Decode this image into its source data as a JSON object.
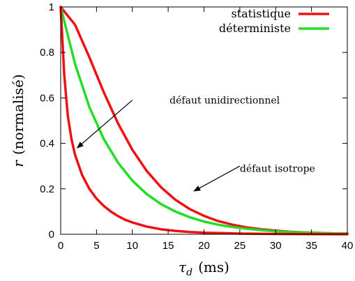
{
  "chart_data": {
    "type": "line",
    "xlabel_symbol": "τ",
    "xlabel_subscript": "d",
    "xlabel_unit": "(ms)",
    "ylabel_symbol": "r",
    "ylabel_unit": "(normalisé)",
    "xlim": [
      0,
      40
    ],
    "ylim": [
      0,
      1
    ],
    "x_ticks": [
      "0",
      "5",
      "10",
      "15",
      "20",
      "25",
      "30",
      "35",
      "40"
    ],
    "y_ticks": [
      "0",
      "0.2",
      "0.4",
      "0.6",
      "0.8",
      "1"
    ],
    "grid": false,
    "legend_position": "top-right",
    "legend": [
      {
        "label": "statistique",
        "color": "#ee1111"
      },
      {
        "label": "déterministe",
        "color": "#22dd22"
      }
    ],
    "series": [
      {
        "name": "statistique",
        "color": "#ee1111",
        "x": [
          0,
          2,
          4,
          6,
          8,
          10,
          12,
          14,
          16,
          18,
          20,
          22,
          24,
          26,
          28,
          30,
          32,
          34,
          36,
          38,
          40
        ],
        "y": [
          1.0,
          0.922,
          0.779,
          0.626,
          0.488,
          0.372,
          0.279,
          0.207,
          0.152,
          0.111,
          0.081,
          0.058,
          0.042,
          0.03,
          0.022,
          0.016,
          0.011,
          0.008,
          0.006,
          0.004,
          0.003
        ]
      },
      {
        "name": "déterministe",
        "color": "#22dd22",
        "x": [
          0,
          2,
          4,
          6,
          8,
          10,
          12,
          14,
          16,
          18,
          20,
          22,
          24,
          26,
          28,
          30,
          32,
          34,
          36,
          38,
          40
        ],
        "y": [
          1.0,
          0.75,
          0.56,
          0.42,
          0.315,
          0.236,
          0.177,
          0.133,
          0.1,
          0.075,
          0.056,
          0.042,
          0.032,
          0.024,
          0.018,
          0.013,
          0.01,
          0.0075,
          0.0056,
          0.0042,
          0.0032
        ]
      },
      {
        "name": "",
        "color": "#ee1111",
        "x": [
          0,
          0.5,
          1,
          1.5,
          2,
          3,
          4,
          5,
          6,
          7,
          8,
          9,
          10,
          12,
          14,
          16,
          18,
          20,
          25,
          30,
          35,
          40
        ],
        "y": [
          1.0,
          0.7,
          0.52,
          0.42,
          0.35,
          0.26,
          0.2,
          0.157,
          0.125,
          0.1,
          0.08,
          0.064,
          0.052,
          0.034,
          0.022,
          0.015,
          0.01,
          0.007,
          0.003,
          0.0015,
          0.0008,
          0.0004
        ]
      }
    ],
    "annotations": [
      {
        "text": "défaut unidirectionnel",
        "text_at": [
          15.2,
          0.59
        ],
        "arrow_from": [
          10.0,
          0.59
        ],
        "arrow_to": [
          2.3,
          0.38
        ]
      },
      {
        "text": "défaut isotrope",
        "text_at": [
          25.0,
          0.29
        ],
        "arrow_from": [
          25.0,
          0.3
        ],
        "arrow_to": [
          18.6,
          0.19
        ]
      }
    ]
  }
}
